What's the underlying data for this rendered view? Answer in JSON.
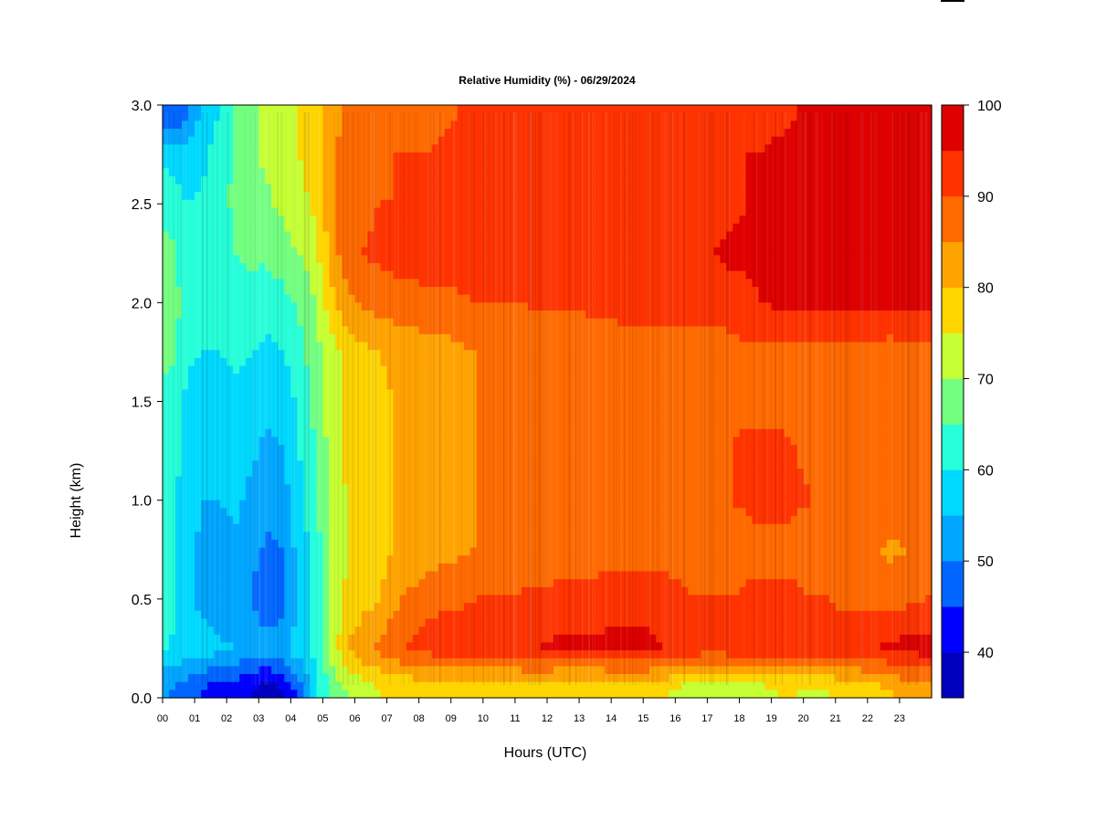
{
  "chart_data": {
    "type": "heatmap",
    "title": "Relative Humidity (%) - 06/29/2024",
    "xlabel": "Hours (UTC)",
    "ylabel": "Height (km)",
    "xlim": [
      0,
      24
    ],
    "ylim": [
      0,
      3.0
    ],
    "x_ticks": [
      "00",
      "01",
      "02",
      "03",
      "04",
      "05",
      "06",
      "07",
      "08",
      "09",
      "10",
      "11",
      "12",
      "13",
      "14",
      "15",
      "16",
      "17",
      "18",
      "19",
      "20",
      "21",
      "22",
      "23"
    ],
    "y_ticks": [
      "0.0",
      "0.5",
      "1.0",
      "1.5",
      "2.0",
      "2.5",
      "3.0"
    ],
    "x": [
      0.25,
      0.75,
      1.25,
      1.75,
      2.25,
      2.75,
      3.25,
      3.75,
      4.25,
      4.75,
      5.25,
      5.75,
      6.25,
      6.75,
      7.25,
      7.75,
      8.25,
      8.75,
      9.25,
      9.75,
      10.25,
      10.75,
      11.25,
      11.75,
      12.25,
      12.75,
      13.25,
      13.75,
      14.25,
      14.75,
      15.25,
      15.75,
      16.25,
      16.75,
      17.25,
      17.75,
      18.25,
      18.75,
      19.25,
      19.75,
      20.25,
      20.75,
      21.25,
      21.75,
      22.25,
      22.75,
      23.25,
      23.75
    ],
    "y": [
      0.05,
      0.25,
      0.5,
      0.75,
      1.0,
      1.25,
      1.5,
      1.75,
      2.0,
      2.25,
      2.5,
      2.75,
      2.95
    ],
    "z": [
      [
        50,
        48,
        45,
        43,
        42,
        40,
        38,
        40,
        47,
        58,
        66,
        70,
        73,
        75,
        76,
        76,
        77,
        77,
        77,
        77,
        77,
        77,
        77,
        77,
        76,
        76,
        76,
        76,
        76,
        76,
        76,
        75,
        74,
        73,
        73,
        74,
        74,
        74,
        75,
        75,
        74,
        75,
        76,
        77,
        79,
        80,
        82,
        84
      ],
      [
        60,
        58,
        58,
        56,
        55,
        54,
        52,
        54,
        58,
        62,
        72,
        80,
        84,
        86,
        89,
        91,
        92,
        93,
        93,
        94,
        94,
        94,
        95,
        95,
        96,
        96,
        96,
        96,
        97,
        97,
        96,
        95,
        94,
        93,
        92,
        93,
        93,
        94,
        94,
        94,
        93,
        93,
        93,
        94,
        95,
        96,
        97,
        97
      ],
      [
        61,
        56,
        53,
        52,
        52,
        50,
        46,
        48,
        55,
        62,
        70,
        76,
        78,
        80,
        84,
        86,
        88,
        89,
        89,
        90,
        90,
        90,
        91,
        91,
        92,
        92,
        92,
        93,
        93,
        93,
        93,
        92,
        91,
        90,
        90,
        90,
        91,
        91,
        91,
        91,
        90,
        90,
        89,
        89,
        89,
        88,
        89,
        90
      ],
      [
        62,
        56,
        54,
        53,
        54,
        52,
        49,
        50,
        57,
        62,
        70,
        75,
        77,
        78,
        80,
        81,
        82,
        83,
        84,
        85,
        85,
        86,
        86,
        86,
        86,
        86,
        87,
        87,
        87,
        88,
        88,
        88,
        87,
        86,
        86,
        87,
        88,
        88,
        88,
        88,
        87,
        86,
        86,
        85,
        85,
        84,
        85,
        86
      ],
      [
        62,
        57,
        55,
        55,
        56,
        54,
        51,
        53,
        58,
        64,
        71,
        75,
        77,
        78,
        80,
        81,
        82,
        83,
        84,
        85,
        86,
        86,
        86,
        87,
        87,
        87,
        87,
        88,
        88,
        88,
        89,
        89,
        89,
        89,
        89,
        90,
        91,
        92,
        92,
        91,
        90,
        89,
        89,
        89,
        89,
        89,
        90,
        90
      ],
      [
        63,
        58,
        56,
        56,
        57,
        56,
        54,
        55,
        60,
        65,
        72,
        76,
        78,
        79,
        80,
        81,
        82,
        83,
        84,
        85,
        86,
        86,
        87,
        87,
        87,
        87,
        88,
        88,
        88,
        89,
        89,
        89,
        89,
        89,
        89,
        90,
        91,
        91,
        91,
        90,
        89,
        89,
        89,
        89,
        89,
        88,
        89,
        89
      ],
      [
        64,
        59,
        58,
        58,
        59,
        58,
        56,
        57,
        61,
        66,
        72,
        76,
        78,
        79,
        80,
        81,
        82,
        83,
        84,
        85,
        85,
        86,
        86,
        87,
        87,
        87,
        87,
        88,
        88,
        88,
        88,
        88,
        88,
        88,
        88,
        89,
        89,
        89,
        89,
        89,
        88,
        88,
        88,
        88,
        88,
        87,
        88,
        88
      ],
      [
        66,
        61,
        60,
        60,
        61,
        60,
        59,
        60,
        63,
        68,
        73,
        77,
        79,
        80,
        81,
        82,
        83,
        83,
        84,
        85,
        85,
        85,
        86,
        86,
        86,
        86,
        87,
        87,
        87,
        87,
        88,
        88,
        88,
        88,
        88,
        88,
        89,
        89,
        89,
        88,
        88,
        88,
        88,
        88,
        88,
        87,
        88,
        88
      ],
      [
        68,
        63,
        62,
        62,
        63,
        63,
        62,
        63,
        66,
        70,
        78,
        84,
        86,
        87,
        88,
        88,
        89,
        89,
        89,
        90,
        90,
        90,
        90,
        91,
        91,
        91,
        91,
        91,
        92,
        92,
        92,
        92,
        92,
        92,
        92,
        93,
        94,
        95,
        96,
        96,
        96,
        96,
        96,
        97,
        97,
        97,
        97,
        97
      ],
      [
        66,
        62,
        62,
        63,
        65,
        66,
        66,
        68,
        70,
        73,
        82,
        88,
        90,
        91,
        92,
        92,
        93,
        93,
        93,
        93,
        93,
        94,
        94,
        94,
        94,
        94,
        94,
        95,
        95,
        95,
        95,
        95,
        95,
        95,
        95,
        96,
        96,
        97,
        97,
        97,
        97,
        97,
        97,
        98,
        98,
        98,
        98,
        98
      ],
      [
        64,
        60,
        61,
        63,
        66,
        68,
        69,
        71,
        73,
        76,
        83,
        88,
        89,
        90,
        90,
        91,
        91,
        91,
        91,
        92,
        92,
        92,
        92,
        92,
        93,
        93,
        93,
        93,
        93,
        93,
        94,
        94,
        94,
        94,
        94,
        94,
        95,
        95,
        96,
        96,
        96,
        96,
        97,
        97,
        97,
        97,
        98,
        98
      ],
      [
        58,
        56,
        59,
        62,
        66,
        69,
        71,
        73,
        75,
        78,
        84,
        88,
        89,
        89,
        90,
        90,
        90,
        91,
        91,
        91,
        91,
        91,
        92,
        92,
        92,
        92,
        92,
        93,
        93,
        93,
        93,
        93,
        93,
        93,
        93,
        94,
        95,
        95,
        96,
        96,
        96,
        96,
        96,
        97,
        97,
        97,
        97,
        97
      ],
      [
        45,
        50,
        56,
        60,
        65,
        69,
        71,
        73,
        75,
        78,
        82,
        86,
        87,
        88,
        88,
        89,
        89,
        89,
        90,
        90,
        90,
        90,
        91,
        91,
        91,
        91,
        91,
        92,
        92,
        92,
        92,
        92,
        92,
        92,
        92,
        93,
        93,
        94,
        94,
        95,
        95,
        95,
        95,
        96,
        96,
        96,
        96,
        96
      ]
    ],
    "colorbar": {
      "ticks": [
        "100",
        "90",
        "80",
        "70",
        "60",
        "50",
        "40"
      ],
      "levels": [
        35,
        40,
        45,
        50,
        55,
        60,
        65,
        70,
        75,
        80,
        85,
        90,
        95,
        100
      ],
      "colors": [
        "#00007f",
        "#0000bf",
        "#0000ff",
        "#0066ff",
        "#00a6ff",
        "#00d9ff",
        "#26ffd9",
        "#73ff80",
        "#c6ff33",
        "#ffd500",
        "#ffa300",
        "#ff6a00",
        "#ff3300",
        "#df0000",
        "#800000"
      ]
    }
  }
}
